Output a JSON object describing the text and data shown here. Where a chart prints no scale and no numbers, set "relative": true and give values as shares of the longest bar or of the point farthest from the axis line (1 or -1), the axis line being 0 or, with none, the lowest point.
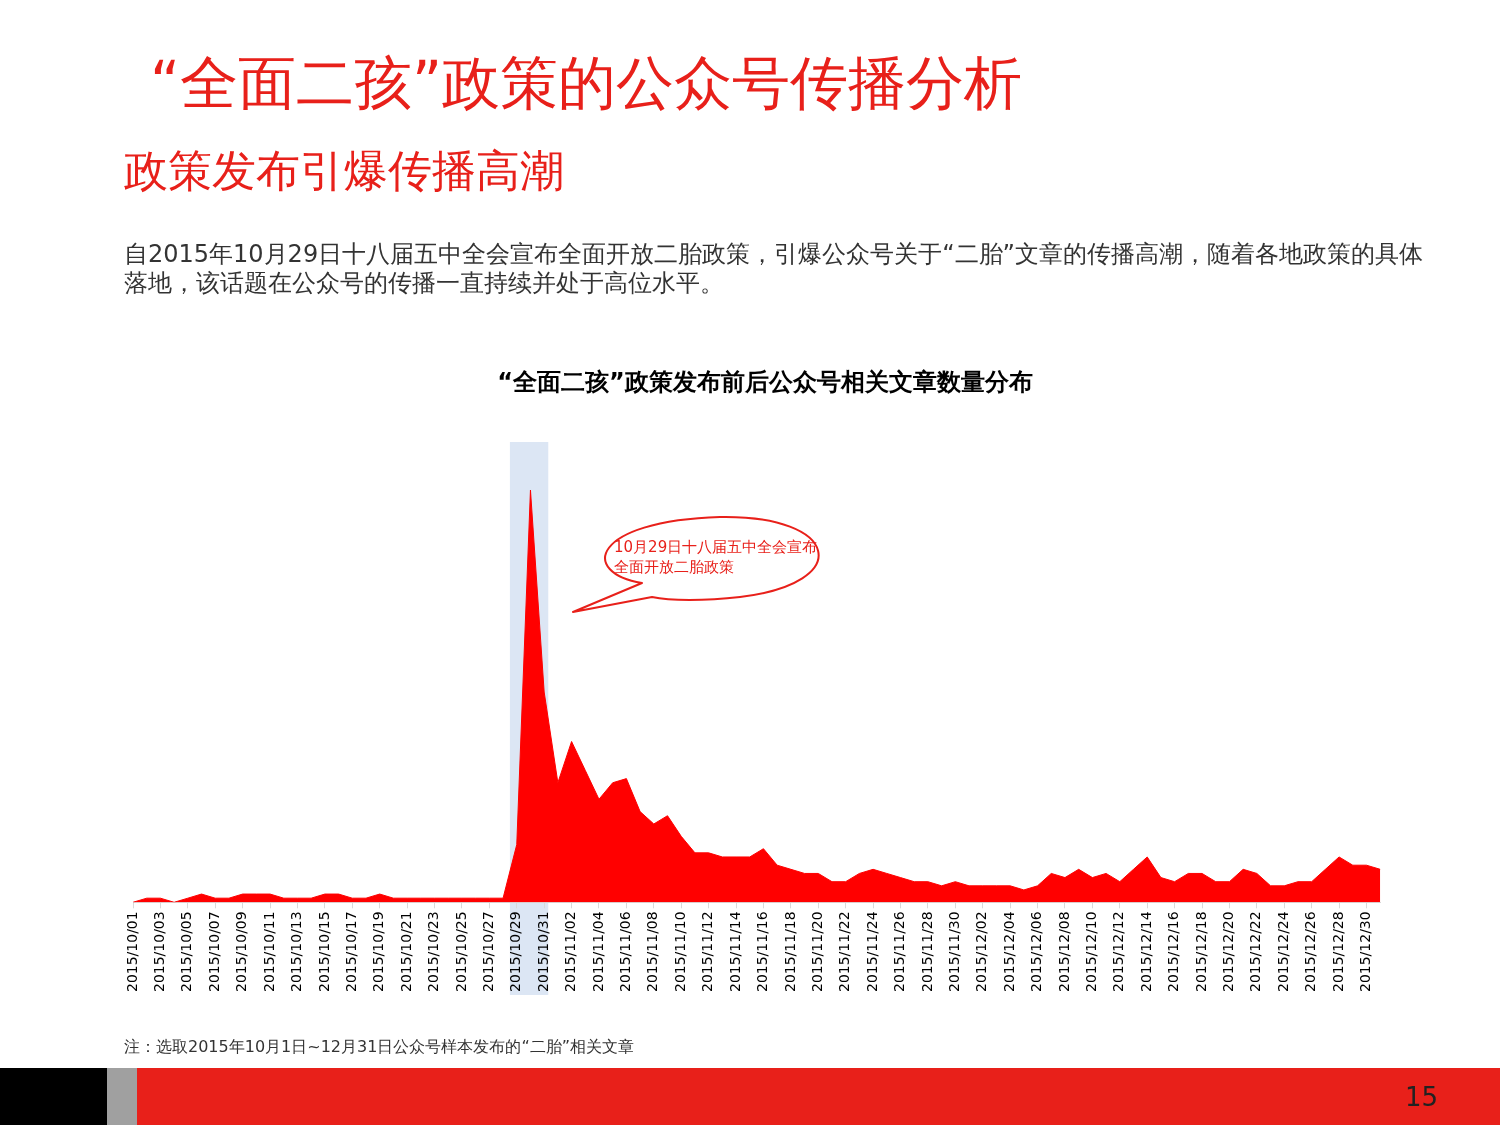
{
  "chart_data": {
    "type": "area",
    "title": "“全面二孩”政策发布前后公众号相关文章数量分布",
    "subtitle": "政策发布引爆传播高潮",
    "annotations": [
      "“全面二孩”政策的公众号传播分析",
      "自2015年10月29日十八届五中全会宣布全面开放二胎政策，引爆公众号关于“二胎”文章的传播高潮，随着各地政策的具体落地，该话题在公众号的传播一直持续并处于高位水平。",
      "10月29日十八届五中全会宣布全面开放二胎政策",
      "注：选取2015年10月1日~12月31日公众号样本发布的“二胎”相关文章",
      "15"
    ],
    "categories": [
      "2015/10/01",
      null,
      "2015/10/03",
      null,
      "2015/10/05",
      null,
      "2015/10/07",
      null,
      "2015/10/09",
      null,
      "2015/10/11",
      null,
      "2015/10/13",
      null,
      "2015/10/15",
      null,
      "2015/10/17",
      null,
      "2015/10/19",
      null,
      "2015/10/21",
      null,
      "2015/10/23",
      null,
      "2015/10/25",
      null,
      "2015/10/27",
      null,
      "2015/10/29",
      null,
      "2015/10/31",
      null,
      "2015/11/02",
      null,
      "2015/11/04",
      null,
      "2015/11/06",
      null,
      "2015/11/08",
      null,
      "2015/11/10",
      null,
      "2015/11/12",
      null,
      "2015/11/14",
      null,
      "2015/11/16",
      null,
      "2015/11/18",
      null,
      "2015/11/20",
      null,
      "2015/11/22",
      null,
      "2015/11/24",
      null,
      "2015/11/26",
      null,
      "2015/11/28",
      null,
      "2015/11/30",
      null,
      "2015/12/02",
      null,
      "2015/12/04",
      null,
      "2015/12/06",
      null,
      "2015/12/08",
      null,
      "2015/12/10",
      null,
      "2015/12/12",
      null,
      "2015/12/14",
      null,
      "2015/12/16",
      null,
      "2015/12/18",
      null,
      "2015/12/20",
      null,
      "2015/12/22",
      null,
      "2015/12/24",
      null,
      "2015/12/26",
      null,
      "2015/12/28",
      null,
      "2015/12/30",
      null
    ],
    "relative": true,
    "series": [
      {
        "color": "#ff0000",
        "values": [
          0,
          0.01,
          0.01,
          0,
          0.01,
          0.02,
          0.01,
          0.01,
          0.02,
          0.02,
          0.02,
          0.01,
          0.01,
          0.01,
          0.02,
          0.02,
          0.01,
          0.01,
          0.02,
          0.01,
          0.01,
          0.01,
          0.01,
          0.01,
          0.01,
          0.01,
          0.01,
          0.01,
          0.14,
          1,
          0.51,
          0.29,
          0.39,
          0.32,
          0.25,
          0.29,
          0.3,
          0.22,
          0.19,
          0.21,
          0.16,
          0.12,
          0.12,
          0.11,
          0.11,
          0.11,
          0.13,
          0.09,
          0.08,
          0.07,
          0.07,
          0.05,
          0.05,
          0.07,
          0.08,
          0.07,
          0.06,
          0.05,
          0.05,
          0.04,
          0.05,
          0.04,
          0.04,
          0.04,
          0.04,
          0.03,
          0.04,
          0.07,
          0.06,
          0.08,
          0.06,
          0.07,
          0.05,
          0.08,
          0.11,
          0.06,
          0.05,
          0.07,
          0.07,
          0.05,
          0.05,
          0.08,
          0.07,
          0.04,
          0.04,
          0.05,
          0.05,
          0.08,
          0.11,
          0.09,
          0.09,
          0.08
        ]
      }
    ],
    "bands": [
      {
        "axis": "x",
        "from": "2015/10/29",
        "to": "2015/10/31",
        "color": "#dce6f4"
      }
    ],
    "legend": false,
    "grid": false
  }
}
